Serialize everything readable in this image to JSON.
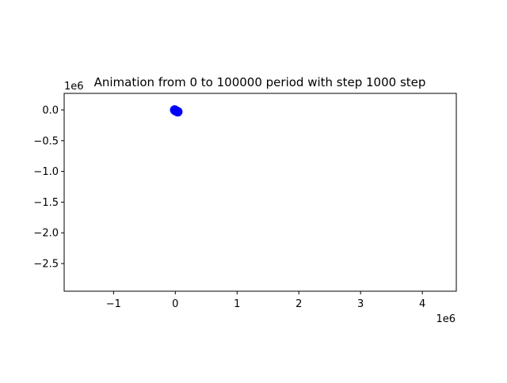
{
  "chart_data": {
    "type": "scatter",
    "title": "Animation from 0 to 100000 period with step 1000 step",
    "xlabel": "",
    "ylabel": "",
    "x_offset_label": "1e6",
    "y_offset_label": "1e6",
    "xlim": [
      -1.8,
      4.55
    ],
    "ylim": [
      -2.95,
      0.27
    ],
    "xticks": [
      -1,
      0,
      1,
      2,
      3,
      4
    ],
    "xtick_labels": [
      "−1",
      "0",
      "1",
      "2",
      "3",
      "4"
    ],
    "yticks": [
      0.0,
      -0.5,
      -1.0,
      -1.5,
      -2.0,
      -2.5
    ],
    "ytick_labels": [
      "0.0",
      "−0.5",
      "−1.0",
      "−1.5",
      "−2.0",
      "−2.5"
    ],
    "grid": false,
    "marker_color": "#0000ff",
    "series": [
      {
        "points": [
          {
            "x": -0.01,
            "y": 0.0
          },
          {
            "x": 0.0,
            "y": -0.01
          },
          {
            "x": 0.02,
            "y": -0.02
          },
          {
            "x": 0.04,
            "y": -0.03
          }
        ]
      }
    ]
  }
}
